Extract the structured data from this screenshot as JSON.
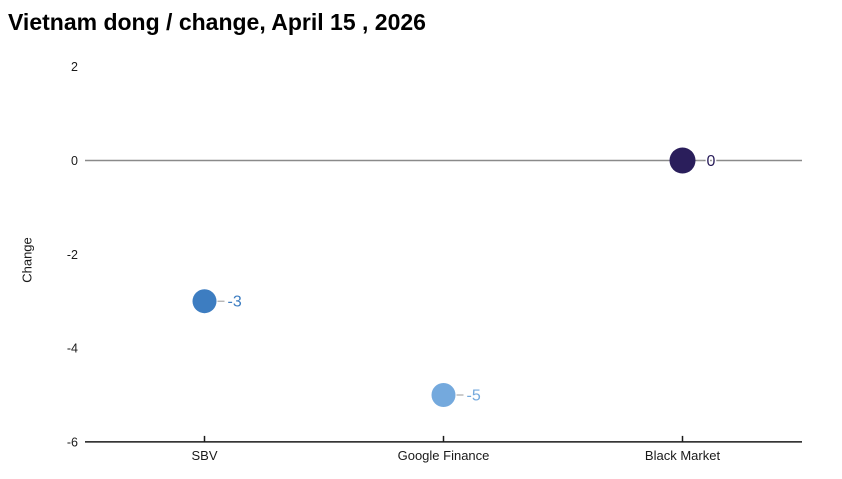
{
  "title": "Vietnam dong / change, April 15 , 2026",
  "chart_data": {
    "type": "scatter",
    "title": "Vietnam dong / change, April 15 , 2026",
    "xlabel": "",
    "ylabel": "Change",
    "categories": [
      "SBV",
      "Google Finance",
      "Black Market"
    ],
    "values": [
      -3,
      -5,
      0
    ],
    "point_labels": [
      "-3",
      "-5",
      "0"
    ],
    "point_colors": [
      "#3d7dc1",
      "#74a9dd",
      "#2a1e5b"
    ],
    "marker_radii": [
      12,
      12,
      13
    ],
    "ylim": [
      -6,
      2
    ],
    "yticks": [
      2,
      0,
      -2,
      -4,
      -6
    ],
    "grid": false,
    "zero_line": true,
    "legend": "none",
    "colors": {
      "zero_line": "#8a8a8a",
      "axis_line": "#1a1a1a",
      "tick_text": "#1a1a1a",
      "connector": "#999999"
    }
  }
}
